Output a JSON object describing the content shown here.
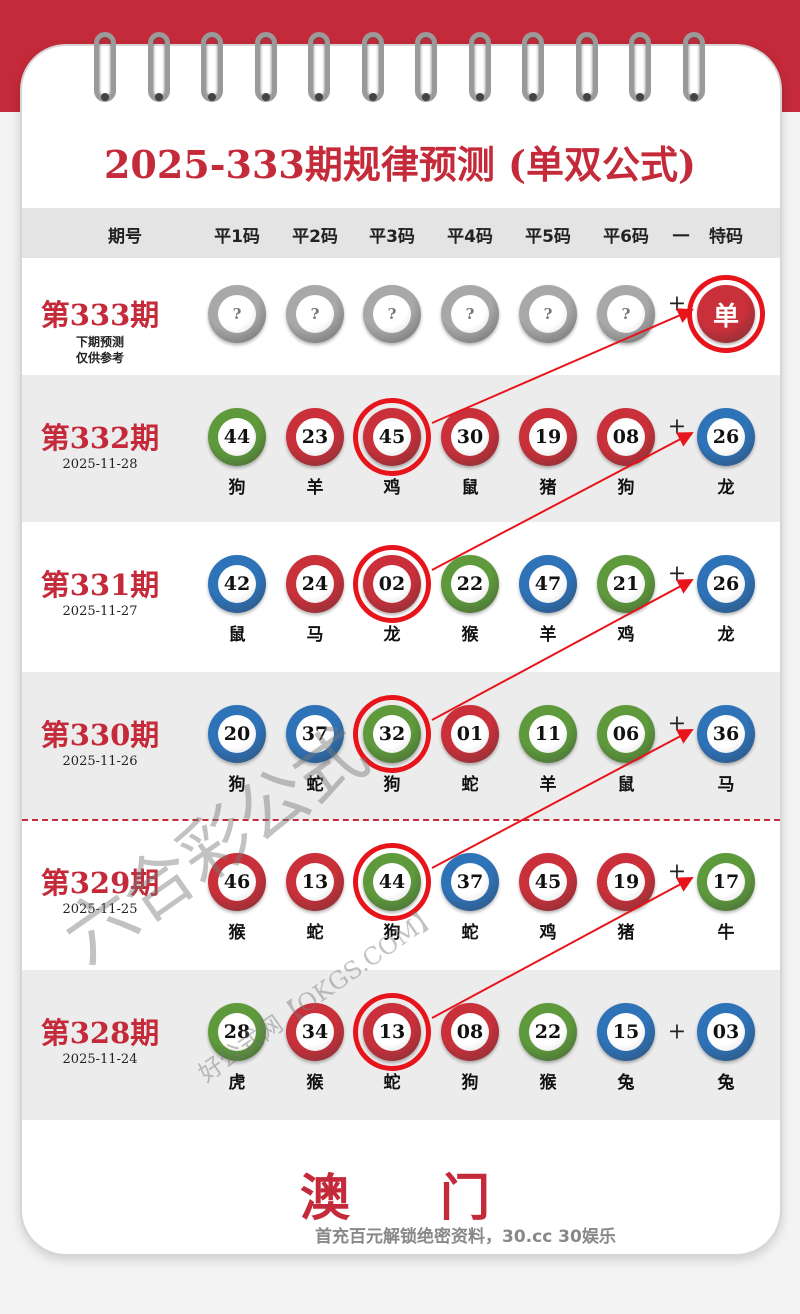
{
  "title": "2025-333期规律预测 (单双公式)",
  "header": {
    "issue": "期号",
    "cols": [
      "平1码",
      "平2码",
      "平3码",
      "平4码",
      "平5码",
      "平6码"
    ],
    "dash": "一",
    "special": "特码"
  },
  "colors": {
    "red": "#c9303a",
    "green": "#5e9a3c",
    "blue": "#2e72b8",
    "gray": "#a8a8a8",
    "accent": "#c42a39",
    "circle": "#e8141b"
  },
  "rows": [
    {
      "issue": "第333期",
      "note1": "下期预测",
      "note2": "仅供参考",
      "balls": [
        {
          "n": "?",
          "c": "gray"
        },
        {
          "n": "?",
          "c": "gray"
        },
        {
          "n": "?",
          "c": "gray"
        },
        {
          "n": "?",
          "c": "gray"
        },
        {
          "n": "?",
          "c": "gray"
        },
        {
          "n": "?",
          "c": "gray"
        }
      ],
      "special": {
        "n": "单",
        "c": "red",
        "z": ""
      },
      "plus": "+"
    },
    {
      "issue": "第332期",
      "date": "2025-11-28",
      "balls": [
        {
          "n": "44",
          "c": "green",
          "z": "狗"
        },
        {
          "n": "23",
          "c": "red",
          "z": "羊"
        },
        {
          "n": "45",
          "c": "red",
          "z": "鸡"
        },
        {
          "n": "30",
          "c": "red",
          "z": "鼠"
        },
        {
          "n": "19",
          "c": "red",
          "z": "猪"
        },
        {
          "n": "08",
          "c": "red",
          "z": "狗"
        }
      ],
      "special": {
        "n": "26",
        "c": "blue",
        "z": "龙"
      },
      "plus": "+"
    },
    {
      "issue": "第331期",
      "date": "2025-11-27",
      "balls": [
        {
          "n": "42",
          "c": "blue",
          "z": "鼠"
        },
        {
          "n": "24",
          "c": "red",
          "z": "马"
        },
        {
          "n": "02",
          "c": "red",
          "z": "龙"
        },
        {
          "n": "22",
          "c": "green",
          "z": "猴"
        },
        {
          "n": "47",
          "c": "blue",
          "z": "羊"
        },
        {
          "n": "21",
          "c": "green",
          "z": "鸡"
        }
      ],
      "special": {
        "n": "26",
        "c": "blue",
        "z": "龙"
      },
      "plus": "+"
    },
    {
      "issue": "第330期",
      "date": "2025-11-26",
      "balls": [
        {
          "n": "20",
          "c": "blue",
          "z": "狗"
        },
        {
          "n": "37",
          "c": "blue",
          "z": "蛇"
        },
        {
          "n": "32",
          "c": "green",
          "z": "狗"
        },
        {
          "n": "01",
          "c": "red",
          "z": "蛇"
        },
        {
          "n": "11",
          "c": "green",
          "z": "羊"
        },
        {
          "n": "06",
          "c": "green",
          "z": "鼠"
        }
      ],
      "special": {
        "n": "36",
        "c": "blue",
        "z": "马"
      },
      "plus": "+"
    },
    {
      "issue": "第329期",
      "date": "2025-11-25",
      "balls": [
        {
          "n": "46",
          "c": "red",
          "z": "猴"
        },
        {
          "n": "13",
          "c": "red",
          "z": "蛇"
        },
        {
          "n": "44",
          "c": "green",
          "z": "狗"
        },
        {
          "n": "37",
          "c": "blue",
          "z": "蛇"
        },
        {
          "n": "45",
          "c": "red",
          "z": "鸡"
        },
        {
          "n": "19",
          "c": "red",
          "z": "猪"
        }
      ],
      "special": {
        "n": "17",
        "c": "green",
        "z": "牛"
      },
      "plus": "+"
    },
    {
      "issue": "第328期",
      "date": "2025-11-24",
      "balls": [
        {
          "n": "28",
          "c": "green",
          "z": "虎"
        },
        {
          "n": "34",
          "c": "red",
          "z": "猴"
        },
        {
          "n": "13",
          "c": "red",
          "z": "蛇"
        },
        {
          "n": "08",
          "c": "red",
          "z": "狗"
        },
        {
          "n": "22",
          "c": "green",
          "z": "猴"
        },
        {
          "n": "15",
          "c": "blue",
          "z": "兔"
        }
      ],
      "special": {
        "n": "03",
        "c": "blue",
        "z": "兔"
      },
      "plus": "+"
    }
  ],
  "footer": {
    "title": "澳门",
    "ad": "首充百元解锁绝密资料，30.cc 30娱乐"
  },
  "watermark": {
    "main": "六合彩公式",
    "sub": "好公式网【OKGS.COM】"
  }
}
